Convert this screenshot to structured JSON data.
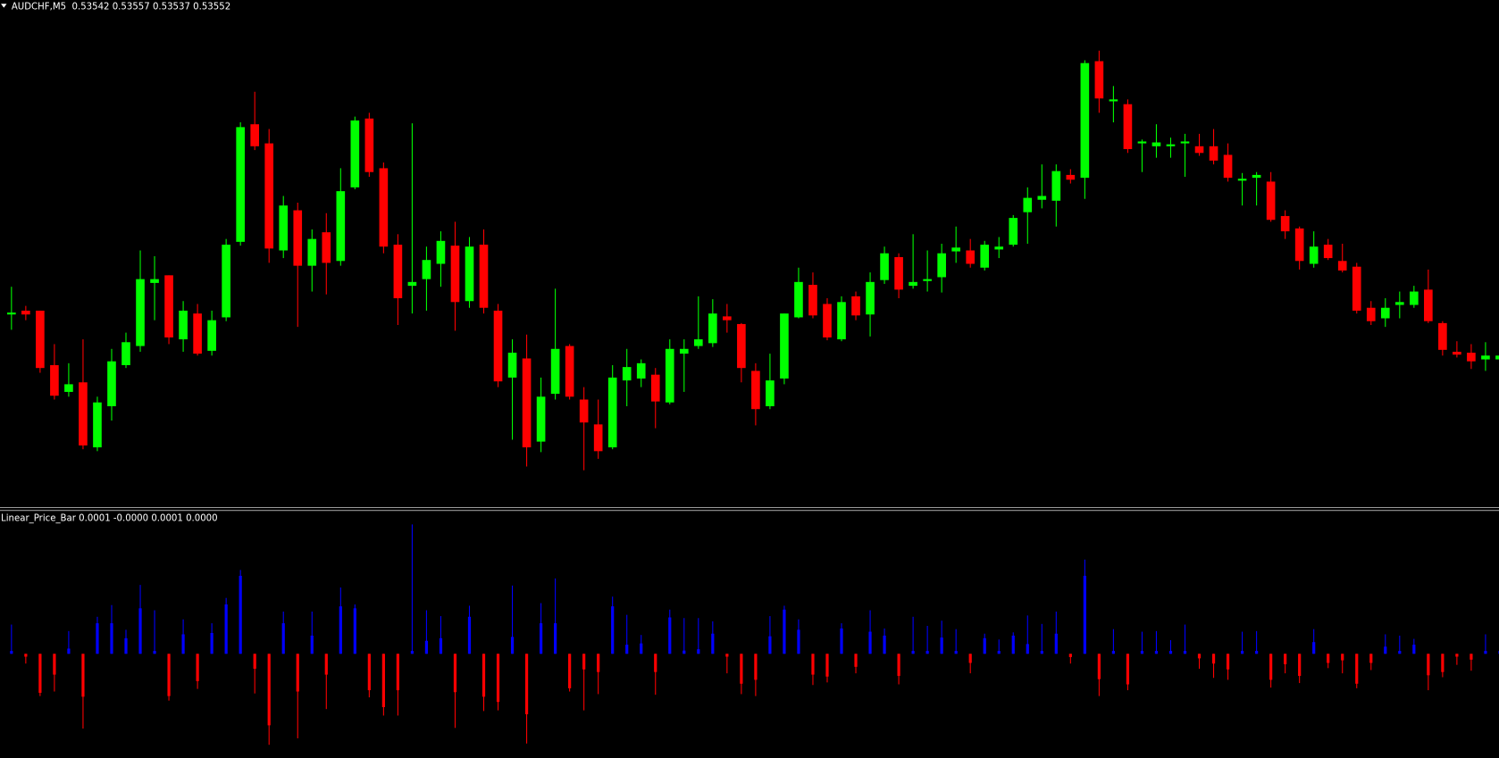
{
  "header": {
    "symbol_line": "AUDCHF,M5  0.53542 0.53557 0.53537 0.53552"
  },
  "indicator": {
    "label_line": "Linear_Price_Bar 0.0001 -0.0000 0.0001 0.0000"
  }
}
